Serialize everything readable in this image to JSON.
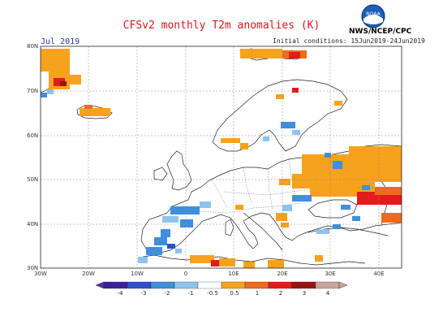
{
  "header": {
    "title": "CFSv2 monthly T2m anomalies (K)",
    "month": "Jul 2019",
    "initial_conditions": "Initial conditions: 15Jun2019-24Jun2019",
    "organization": "NWS/NCEP/CPC",
    "logo_text": "NOAA"
  },
  "map": {
    "lat_labels": [
      "80N",
      "70N",
      "60N",
      "50N",
      "40N",
      "30N"
    ],
    "lon_labels": [
      "30W",
      "20W",
      "10W",
      "0",
      "10E",
      "20E",
      "30E",
      "40E"
    ]
  },
  "colorbar": {
    "labels": [
      "-4",
      "-3",
      "-2",
      "-1",
      "-0.5",
      "0.5",
      "1",
      "2",
      "3",
      "4"
    ],
    "colors": [
      "#3b1f9e",
      "#2b4fcf",
      "#3f8fdc",
      "#8fc4ee",
      "#ffffff",
      "#f6a21c",
      "#ef6a1a",
      "#e21b1b",
      "#9a1212",
      "#c8a49a"
    ],
    "end_colors": {
      "left": "#5d2fa8",
      "right": "#c9a49b"
    }
  },
  "colors": {
    "warm": "#f6a21c",
    "hot": "#e21b1b",
    "cool": "#3f8fdc",
    "light_cool": "#8fc4ee"
  }
}
